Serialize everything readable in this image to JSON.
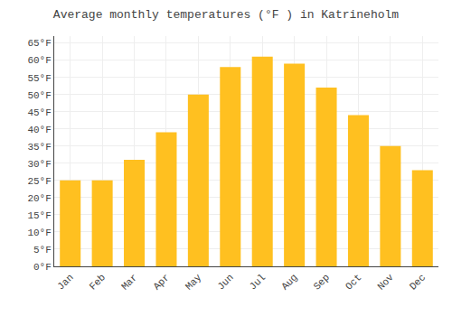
{
  "chart_data": {
    "type": "bar",
    "title": "Average monthly temperatures (°F ) in Katrineholm",
    "categories": [
      "Jan",
      "Feb",
      "Mar",
      "Apr",
      "May",
      "Jun",
      "Jul",
      "Aug",
      "Sep",
      "Oct",
      "Nov",
      "Dec"
    ],
    "values": [
      25,
      25,
      31,
      39,
      50,
      58,
      61,
      59,
      52,
      44,
      35,
      28
    ],
    "color": "#FFC020",
    "ylim": [
      0,
      67
    ],
    "yticks": [
      {
        "value": 0,
        "label": "0°F"
      },
      {
        "value": 5,
        "label": "5°F"
      },
      {
        "value": 10,
        "label": "10°F"
      },
      {
        "value": 15,
        "label": "15°F"
      },
      {
        "value": 20,
        "label": "20°F"
      },
      {
        "value": 25,
        "label": "25°F"
      },
      {
        "value": 30,
        "label": "30°F"
      },
      {
        "value": 35,
        "label": "35°F"
      },
      {
        "value": 40,
        "label": "40°F"
      },
      {
        "value": 45,
        "label": "45°F"
      },
      {
        "value": 50,
        "label": "50°F"
      },
      {
        "value": 55,
        "label": "55°F"
      },
      {
        "value": 60,
        "label": "60°F"
      },
      {
        "value": 65,
        "label": "65°F"
      }
    ],
    "grid": true
  }
}
